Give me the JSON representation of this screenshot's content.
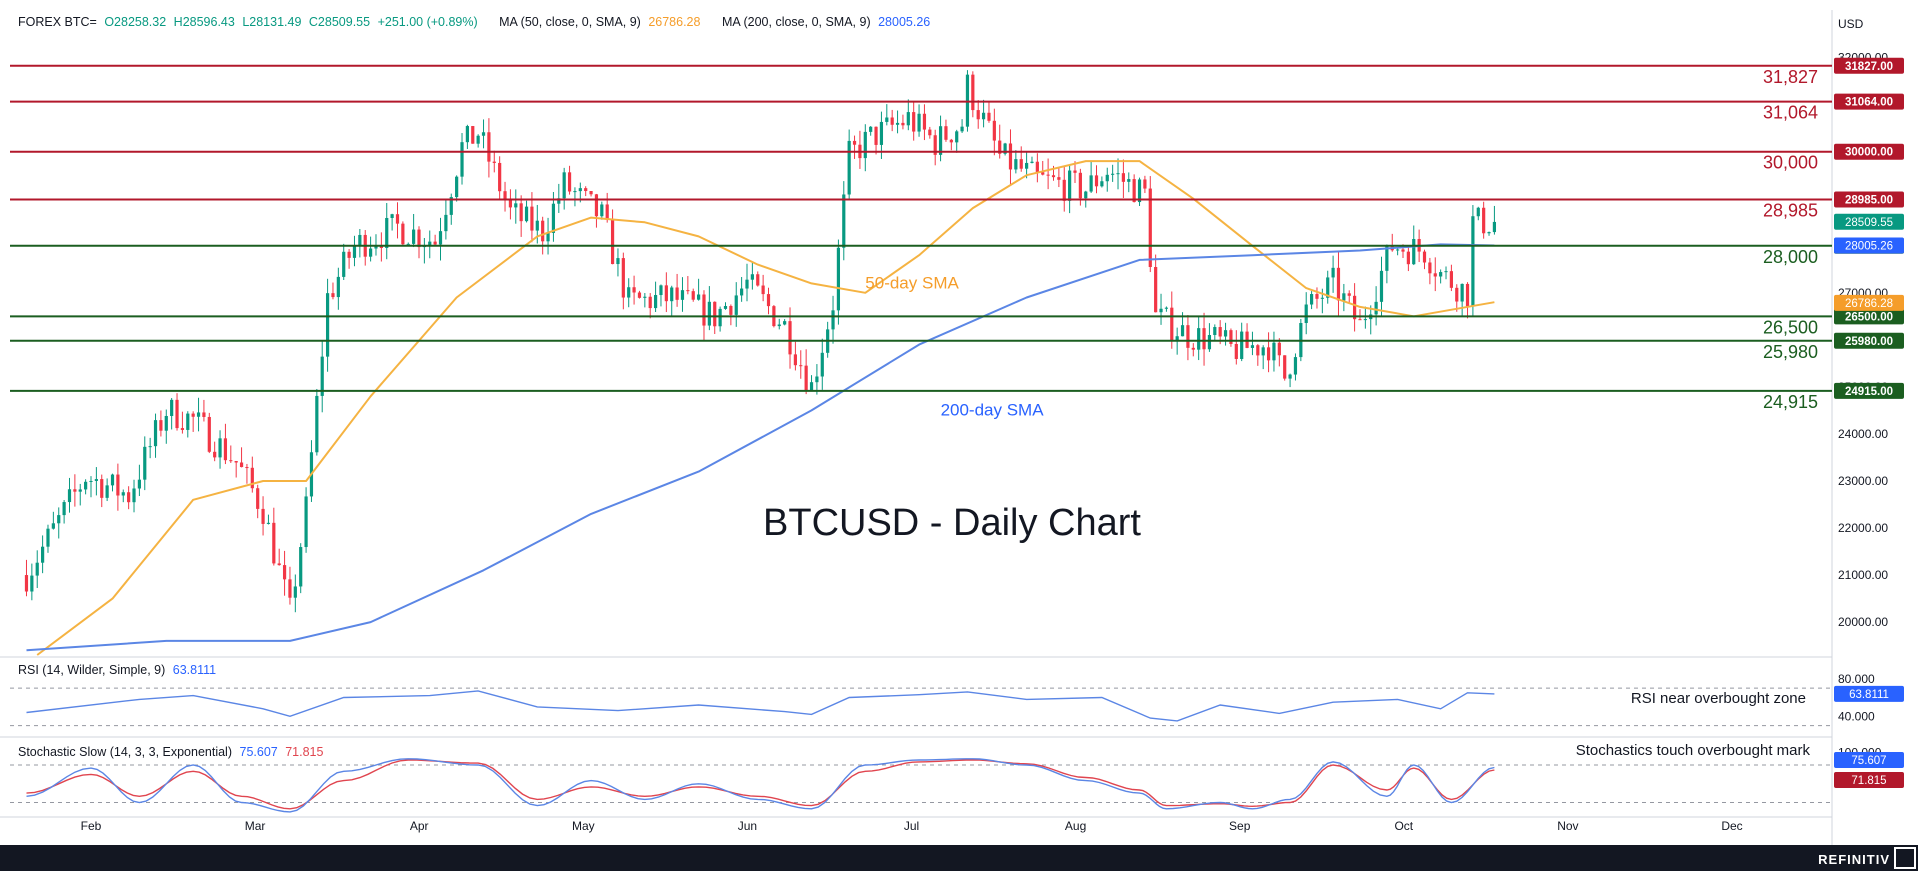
{
  "header": {
    "symbol": "FOREX BTC=",
    "open": "O28258.32",
    "high": "H28596.43",
    "low": "L28131.49",
    "close": "C28509.55",
    "change": "+251.00 (+0.89%)",
    "ma50_label": "MA (50, close, 0, SMA, 9)",
    "ma50_value": "26786.28",
    "ma200_label": "MA (200, close, 0, SMA, 9)",
    "ma200_value": "28005.26",
    "currency": "USD"
  },
  "indicators": {
    "rsi_label": "RSI (14, Wilder, Simple, 9)",
    "rsi_value": "63.8111",
    "stoch_label": "Stochastic Slow (14, 3, 3, Exponential)",
    "stoch_k": "75.607",
    "stoch_d": "71.815"
  },
  "brand": "REFINITIV",
  "colors": {
    "up": "#089981",
    "down": "#f23645",
    "resistance": "#b2182b",
    "support": "#1b5e20",
    "sma50": "#f5b342",
    "sma200": "#5b86e5",
    "rsi": "#5b86e5",
    "stoch_k": "#5b86e5",
    "stoch_d": "#e0454f"
  },
  "chart_data": [
    {
      "type": "candlestick",
      "title": "BTCUSD - Daily Chart",
      "x_ticks": [
        "Feb",
        "Mar",
        "Apr",
        "May",
        "Jun",
        "Jul",
        "Aug",
        "Sep",
        "Oct",
        "Nov",
        "Dec"
      ],
      "ylim": [
        19300,
        32800
      ],
      "y_ticks": [
        20000,
        21000,
        22000,
        23000,
        24000,
        25000,
        26000,
        27000,
        28000,
        29000,
        30000,
        31000,
        32000
      ],
      "y_tick_labels": [
        "20000.00",
        "21000.00",
        "22000.00",
        "23000.00",
        "24000.00",
        "25000.00",
        "26000.00",
        "27000.00",
        "28000.00",
        "29000.00",
        "30000.00",
        "31000.00",
        "32000.00"
      ],
      "close_path": {
        "dates": [
          "2023-01-20",
          "2023-01-31",
          "2023-02-08",
          "2023-02-15",
          "2023-02-20",
          "2023-02-28",
          "2023-03-05",
          "2023-03-10",
          "2023-03-13",
          "2023-03-17",
          "2023-03-22",
          "2023-03-30",
          "2023-04-06",
          "2023-04-11",
          "2023-04-14",
          "2023-04-20",
          "2023-04-26",
          "2023-04-30",
          "2023-05-07",
          "2023-05-12",
          "2023-05-20",
          "2023-05-28",
          "2023-06-03",
          "2023-06-10",
          "2023-06-15",
          "2023-06-19",
          "2023-06-22",
          "2023-06-26",
          "2023-07-03",
          "2023-07-08",
          "2023-07-13",
          "2023-07-14",
          "2023-07-20",
          "2023-07-27",
          "2023-08-05",
          "2023-08-09",
          "2023-08-16",
          "2023-08-18",
          "2023-08-24",
          "2023-08-29",
          "2023-09-01",
          "2023-09-08",
          "2023-09-11",
          "2023-09-15",
          "2023-09-20",
          "2023-09-25",
          "2023-10-01",
          "2023-10-07",
          "2023-10-10",
          "2023-10-15",
          "2023-10-16",
          "2023-10-20"
        ],
        "values": [
          21000,
          23100,
          22700,
          24500,
          24300,
          23400,
          22400,
          20200,
          22400,
          26900,
          28000,
          28400,
          28100,
          30100,
          30400,
          28700,
          28300,
          29300,
          28600,
          26800,
          26900,
          26500,
          27200,
          26300,
          25000,
          26800,
          29900,
          30300,
          30700,
          30200,
          30600,
          31400,
          29900,
          29400,
          29200,
          29600,
          29100,
          26500,
          26100,
          26000,
          25800,
          25900,
          25200,
          26600,
          27200,
          26300,
          28000,
          27900,
          27400,
          27000,
          28500,
          28500
        ]
      },
      "candle_range": {
        "start": "2023-01-20",
        "end": "2023-10-20"
      },
      "series": [
        {
          "name": "50-day SMA",
          "dates": [
            "2023-01-22",
            "2023-02-05",
            "2023-02-20",
            "2023-03-05",
            "2023-03-13",
            "2023-03-25",
            "2023-04-10",
            "2023-04-25",
            "2023-05-05",
            "2023-05-15",
            "2023-05-25",
            "2023-06-05",
            "2023-06-15",
            "2023-06-25",
            "2023-07-05",
            "2023-07-15",
            "2023-07-25",
            "2023-08-05",
            "2023-08-15",
            "2023-08-25",
            "2023-09-05",
            "2023-09-15",
            "2023-09-25",
            "2023-10-05",
            "2023-10-20"
          ],
          "values": [
            19250,
            20500,
            22600,
            23000,
            23000,
            24800,
            26900,
            28200,
            28600,
            28500,
            28200,
            27600,
            27200,
            27000,
            27800,
            28800,
            29500,
            29800,
            29800,
            29000,
            28000,
            27100,
            26700,
            26500,
            26800
          ]
        },
        {
          "name": "200-day SMA",
          "dates": [
            "2023-01-20",
            "2023-02-15",
            "2023-03-10",
            "2023-03-25",
            "2023-04-15",
            "2023-05-05",
            "2023-05-25",
            "2023-06-15",
            "2023-07-05",
            "2023-07-25",
            "2023-08-15",
            "2023-09-05",
            "2023-09-25",
            "2023-10-10",
            "2023-10-20"
          ],
          "values": [
            19400,
            19600,
            19600,
            20000,
            21100,
            22300,
            23200,
            24500,
            25900,
            26900,
            27700,
            27800,
            27900,
            28030,
            28005
          ]
        }
      ],
      "levels": [
        {
          "value": 31827,
          "label": "31,827",
          "tag": "31827.00",
          "kind": "resistance"
        },
        {
          "value": 31064,
          "label": "31,064",
          "tag": "31064.00",
          "kind": "resistance"
        },
        {
          "value": 30000,
          "label": "30,000",
          "tag": "30000.00",
          "kind": "resistance"
        },
        {
          "value": 28985,
          "label": "28,985",
          "tag": "28985.00",
          "kind": "resistance"
        },
        {
          "value": 28000,
          "label": "28,000",
          "tag": "28000.00",
          "kind": "support"
        },
        {
          "value": 26500,
          "label": "26,500",
          "tag": "26500.00",
          "kind": "support"
        },
        {
          "value": 25980,
          "label": "25,980",
          "tag": "25980.00",
          "kind": "support"
        },
        {
          "value": 24915,
          "label": "24,915",
          "tag": "24915.00",
          "kind": "support"
        }
      ],
      "price_tags": [
        {
          "value": 28509.55,
          "label": "28509.55",
          "color": "#089981"
        },
        {
          "value": 28005.26,
          "label": "28005.26",
          "color": "#2962ff"
        },
        {
          "value": 26786.28,
          "label": "26786.28",
          "color": "#f59d2a"
        }
      ],
      "annotations": [
        {
          "text": "50-day SMA",
          "color": "#f59d2a",
          "at_date": "2023-06-25",
          "at_value": 27200
        },
        {
          "text": "200-day SMA",
          "color": "#2962ff",
          "at_date": "2023-07-09",
          "at_value": 24500
        }
      ]
    },
    {
      "type": "line",
      "name": "RSI",
      "ylim": [
        20,
        100
      ],
      "y_tick_labels": [
        "80.000",
        "40.000"
      ],
      "y_ticks": [
        80,
        40
      ],
      "overbought": 70,
      "oversold": 30,
      "current": 63.8111,
      "current_label": "63.8111",
      "dates": [
        "2023-01-20",
        "2023-02-10",
        "2023-02-20",
        "2023-03-05",
        "2023-03-10",
        "2023-03-20",
        "2023-04-05",
        "2023-04-14",
        "2023-04-25",
        "2023-05-10",
        "2023-05-25",
        "2023-06-10",
        "2023-06-15",
        "2023-06-22",
        "2023-07-05",
        "2023-07-14",
        "2023-07-25",
        "2023-08-08",
        "2023-08-17",
        "2023-08-22",
        "2023-08-30",
        "2023-09-10",
        "2023-09-20",
        "2023-10-02",
        "2023-10-10",
        "2023-10-15",
        "2023-10-20"
      ],
      "values": [
        44,
        58,
        62,
        48,
        40,
        60,
        62,
        67,
        50,
        46,
        52,
        45,
        42,
        60,
        63,
        66,
        58,
        60,
        38,
        35,
        52,
        43,
        55,
        58,
        48,
        65,
        63.8
      ],
      "annotation": "RSI near overbought zone"
    },
    {
      "type": "line",
      "name": "Stochastic Slow",
      "ylim": [
        0,
        120
      ],
      "y_tick_labels": [
        "100.000"
      ],
      "y_ticks": [
        100
      ],
      "overbought": 80,
      "oversold": 20,
      "k_label": "75.607",
      "d_label": "71.815",
      "k": {
        "dates": [
          "2023-01-20",
          "2023-02-01",
          "2023-02-10",
          "2023-02-20",
          "2023-03-01",
          "2023-03-10",
          "2023-03-20",
          "2023-04-01",
          "2023-04-14",
          "2023-04-25",
          "2023-05-05",
          "2023-05-15",
          "2023-05-25",
          "2023-06-05",
          "2023-06-15",
          "2023-06-25",
          "2023-07-05",
          "2023-07-15",
          "2023-07-25",
          "2023-08-05",
          "2023-08-15",
          "2023-08-20",
          "2023-08-30",
          "2023-09-05",
          "2023-09-12",
          "2023-09-20",
          "2023-09-30",
          "2023-10-05",
          "2023-10-12",
          "2023-10-20"
        ],
        "values": [
          30,
          75,
          20,
          80,
          20,
          5,
          70,
          90,
          80,
          15,
          55,
          25,
          50,
          25,
          10,
          80,
          88,
          90,
          80,
          55,
          35,
          10,
          20,
          10,
          25,
          85,
          30,
          80,
          20,
          76
        ]
      },
      "d": {
        "dates": [
          "2023-01-20",
          "2023-02-01",
          "2023-02-10",
          "2023-02-20",
          "2023-03-01",
          "2023-03-10",
          "2023-03-20",
          "2023-04-01",
          "2023-04-14",
          "2023-04-25",
          "2023-05-05",
          "2023-05-15",
          "2023-05-25",
          "2023-06-05",
          "2023-06-15",
          "2023-06-25",
          "2023-07-05",
          "2023-07-15",
          "2023-07-25",
          "2023-08-05",
          "2023-08-15",
          "2023-08-20",
          "2023-08-30",
          "2023-09-05",
          "2023-09-12",
          "2023-09-20",
          "2023-09-30",
          "2023-10-05",
          "2023-10-12",
          "2023-10-20"
        ],
        "values": [
          35,
          65,
          30,
          70,
          30,
          10,
          55,
          88,
          83,
          25,
          45,
          30,
          45,
          30,
          15,
          70,
          85,
          88,
          82,
          60,
          40,
          15,
          18,
          14,
          20,
          80,
          40,
          75,
          25,
          72
        ]
      },
      "annotation": "Stochastics touch overbought mark"
    }
  ]
}
